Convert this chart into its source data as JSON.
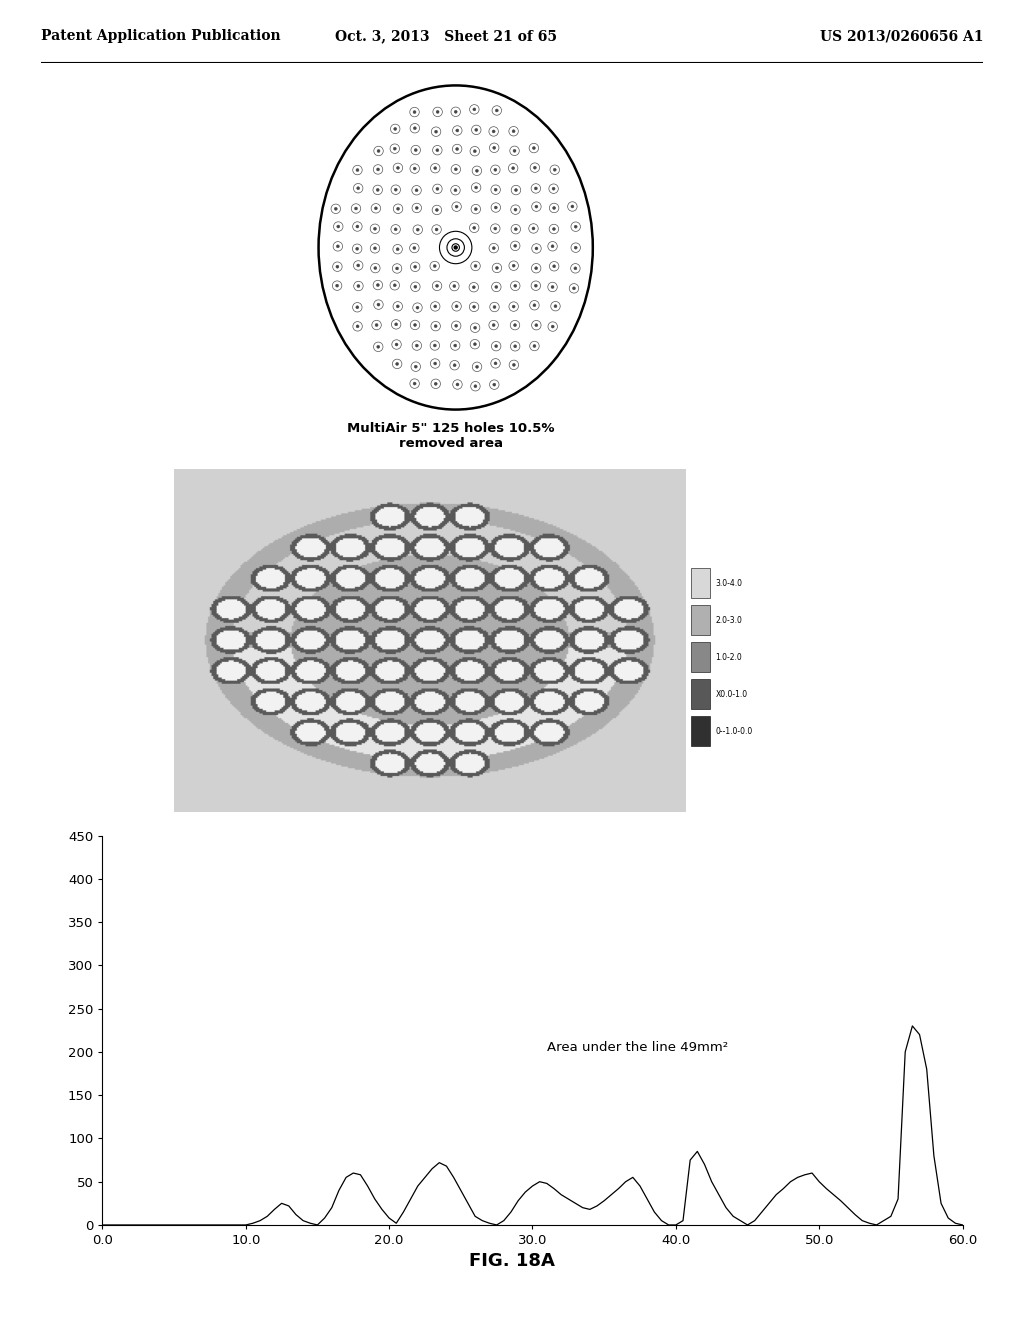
{
  "header_left": "Patent Application Publication",
  "header_mid": "Oct. 3, 2013   Sheet 21 of 65",
  "header_right": "US 2013/0260656 A1",
  "circle_caption": "MultiAir 5\" 125 holes 10.5%\nremoved area",
  "annotation": "Area under the line 49mm²",
  "fig_label": "FIG. 18A",
  "x_data": [
    0.0,
    0.5,
    1.0,
    1.5,
    2.0,
    2.5,
    3.0,
    3.5,
    4.0,
    4.5,
    5.0,
    5.5,
    6.0,
    6.5,
    7.0,
    7.5,
    8.0,
    8.5,
    9.0,
    9.5,
    10.0,
    10.5,
    11.0,
    11.5,
    12.0,
    12.5,
    13.0,
    13.5,
    14.0,
    14.5,
    15.0,
    15.5,
    16.0,
    16.5,
    17.0,
    17.5,
    18.0,
    18.5,
    19.0,
    19.5,
    20.0,
    20.5,
    21.0,
    21.5,
    22.0,
    22.5,
    23.0,
    23.5,
    24.0,
    24.5,
    25.0,
    25.5,
    26.0,
    26.5,
    27.0,
    27.5,
    28.0,
    28.5,
    29.0,
    29.5,
    30.0,
    30.5,
    31.0,
    31.5,
    32.0,
    32.5,
    33.0,
    33.5,
    34.0,
    34.5,
    35.0,
    35.5,
    36.0,
    36.5,
    37.0,
    37.5,
    38.0,
    38.5,
    39.0,
    39.5,
    40.0,
    40.5,
    41.0,
    41.5,
    42.0,
    42.5,
    43.0,
    43.5,
    44.0,
    44.5,
    45.0,
    45.5,
    46.0,
    46.5,
    47.0,
    47.5,
    48.0,
    48.5,
    49.0,
    49.5,
    50.0,
    50.5,
    51.0,
    51.5,
    52.0,
    52.5,
    53.0,
    53.5,
    54.0,
    54.5,
    55.0,
    55.5,
    56.0,
    56.5,
    57.0,
    57.5,
    58.0,
    58.5,
    59.0,
    59.5,
    60.0
  ],
  "y_data": [
    0,
    0,
    0,
    0,
    0,
    0,
    0,
    0,
    0,
    0,
    0,
    0,
    0,
    0,
    0,
    0,
    0,
    0,
    0,
    0,
    0,
    2,
    5,
    10,
    18,
    25,
    22,
    12,
    5,
    2,
    0,
    8,
    20,
    40,
    55,
    60,
    58,
    45,
    30,
    18,
    8,
    2,
    15,
    30,
    45,
    55,
    65,
    72,
    68,
    55,
    40,
    25,
    10,
    5,
    2,
    0,
    5,
    15,
    28,
    38,
    45,
    50,
    48,
    42,
    35,
    30,
    25,
    20,
    18,
    22,
    28,
    35,
    42,
    50,
    55,
    45,
    30,
    15,
    5,
    0,
    0,
    5,
    75,
    85,
    70,
    50,
    35,
    20,
    10,
    5,
    0,
    5,
    15,
    25,
    35,
    42,
    50,
    55,
    58,
    60,
    50,
    42,
    35,
    28,
    20,
    12,
    5,
    2,
    0,
    5,
    10,
    30,
    200,
    230,
    220,
    180,
    80,
    25,
    8,
    2,
    0
  ],
  "xlim": [
    0.0,
    60.0
  ],
  "ylim": [
    0,
    450
  ],
  "xticks": [
    0.0,
    10.0,
    20.0,
    30.0,
    40.0,
    50.0,
    60.0
  ],
  "yticks": [
    0,
    50,
    100,
    150,
    200,
    250,
    300,
    350,
    400,
    450
  ],
  "line_color": "#000000",
  "bg_color": "#ffffff",
  "legend_items": [
    {
      "label": "3.0-4.0",
      "color": "#d8d8d8"
    },
    {
      "label": "2.0-3.0",
      "color": "#b0b0b0"
    },
    {
      "label": "1.0-2.0",
      "color": "#888888"
    },
    {
      "label": "X0.0-1.0",
      "color": "#585858"
    },
    {
      "label": "0--1.0-0.0",
      "color": "#303030"
    }
  ]
}
